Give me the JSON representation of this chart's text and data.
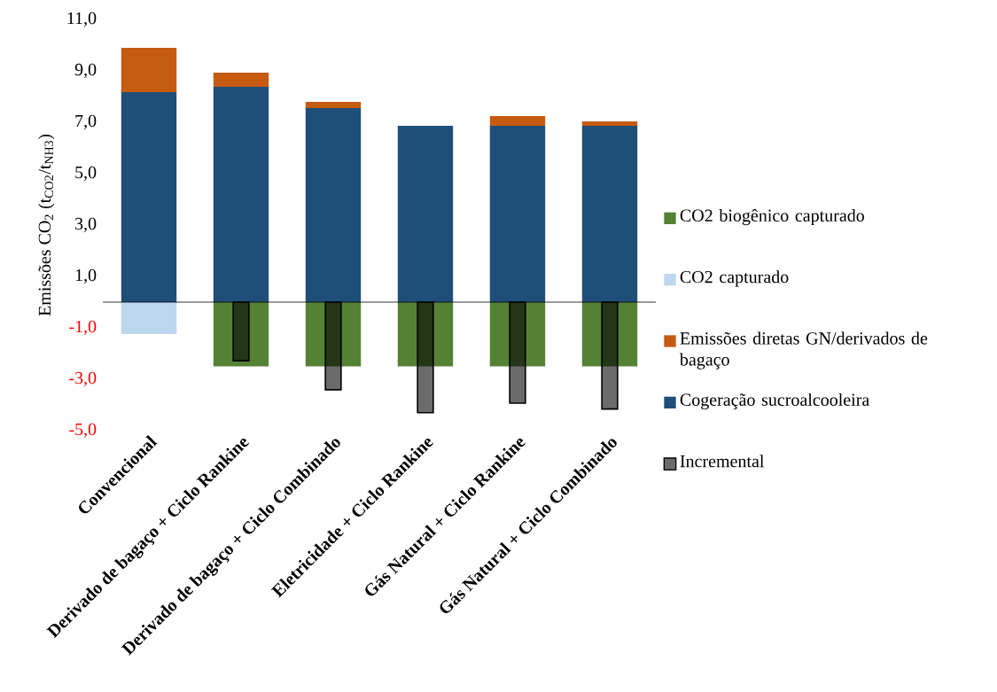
{
  "chart_data": [
    {
      "type": "bar",
      "stacked": true,
      "ylabel": "Emissões CO$_{2}$ (t$_{CO2}$/t$_{NH3}$)",
      "categories": [
        "Convencional",
        "Derivado de bagaço + Ciclo Rankine",
        "Derivado de bagaço + Ciclo Combinado",
        "Eletricidade + Ciclo Rankine",
        "Gás Natural + Ciclo Rankine",
        "Gás Natural + Ciclo Combinado"
      ],
      "series": [
        {
          "name": "Cogeração sucroalcooleira",
          "color": "#1f4e79",
          "values": [
            8.17,
            8.38,
            7.55,
            6.86,
            6.86,
            6.86
          ]
        },
        {
          "name": "Emissões diretas GN/derivados de bagaço",
          "color": "#c55a11",
          "values": [
            1.73,
            0.55,
            0.24,
            null,
            0.38,
            0.17
          ]
        },
        {
          "name": "CO2 capturado",
          "color": "#bdd7ee",
          "values": [
            -1.24,
            null,
            null,
            null,
            null,
            null
          ]
        },
        {
          "name": "CO2 biogênico capturado",
          "color": "#548235",
          "values": [
            null,
            -2.5,
            -2.5,
            -2.5,
            -2.5,
            -2.5
          ]
        }
      ],
      "ylim": [
        -5,
        11
      ],
      "yticks": [
        {
          "value": -5,
          "label": "-5,0"
        },
        {
          "value": -3,
          "label": "-3,0"
        },
        {
          "value": -1,
          "label": "-1,0"
        },
        {
          "value": 1,
          "label": "1,0"
        },
        {
          "value": 3,
          "label": "3,0"
        },
        {
          "value": 5,
          "label": "5,0"
        },
        {
          "value": 7,
          "label": "7,0"
        },
        {
          "value": 9,
          "label": "9,0"
        },
        {
          "value": 11,
          "label": "11,0"
        }
      ],
      "legend": "right"
    },
    {
      "type": "bar",
      "categories": [
        null,
        null,
        null,
        null,
        null,
        null
      ],
      "series": [
        {
          "name": "Incremental",
          "color": "#000000",
          "values": [
            null,
            -2.28,
            -3.41,
            -4.3,
            -3.93,
            -4.16
          ]
        }
      ],
      "ylim": [
        -5,
        11
      ],
      "legend": "right"
    }
  ]
}
